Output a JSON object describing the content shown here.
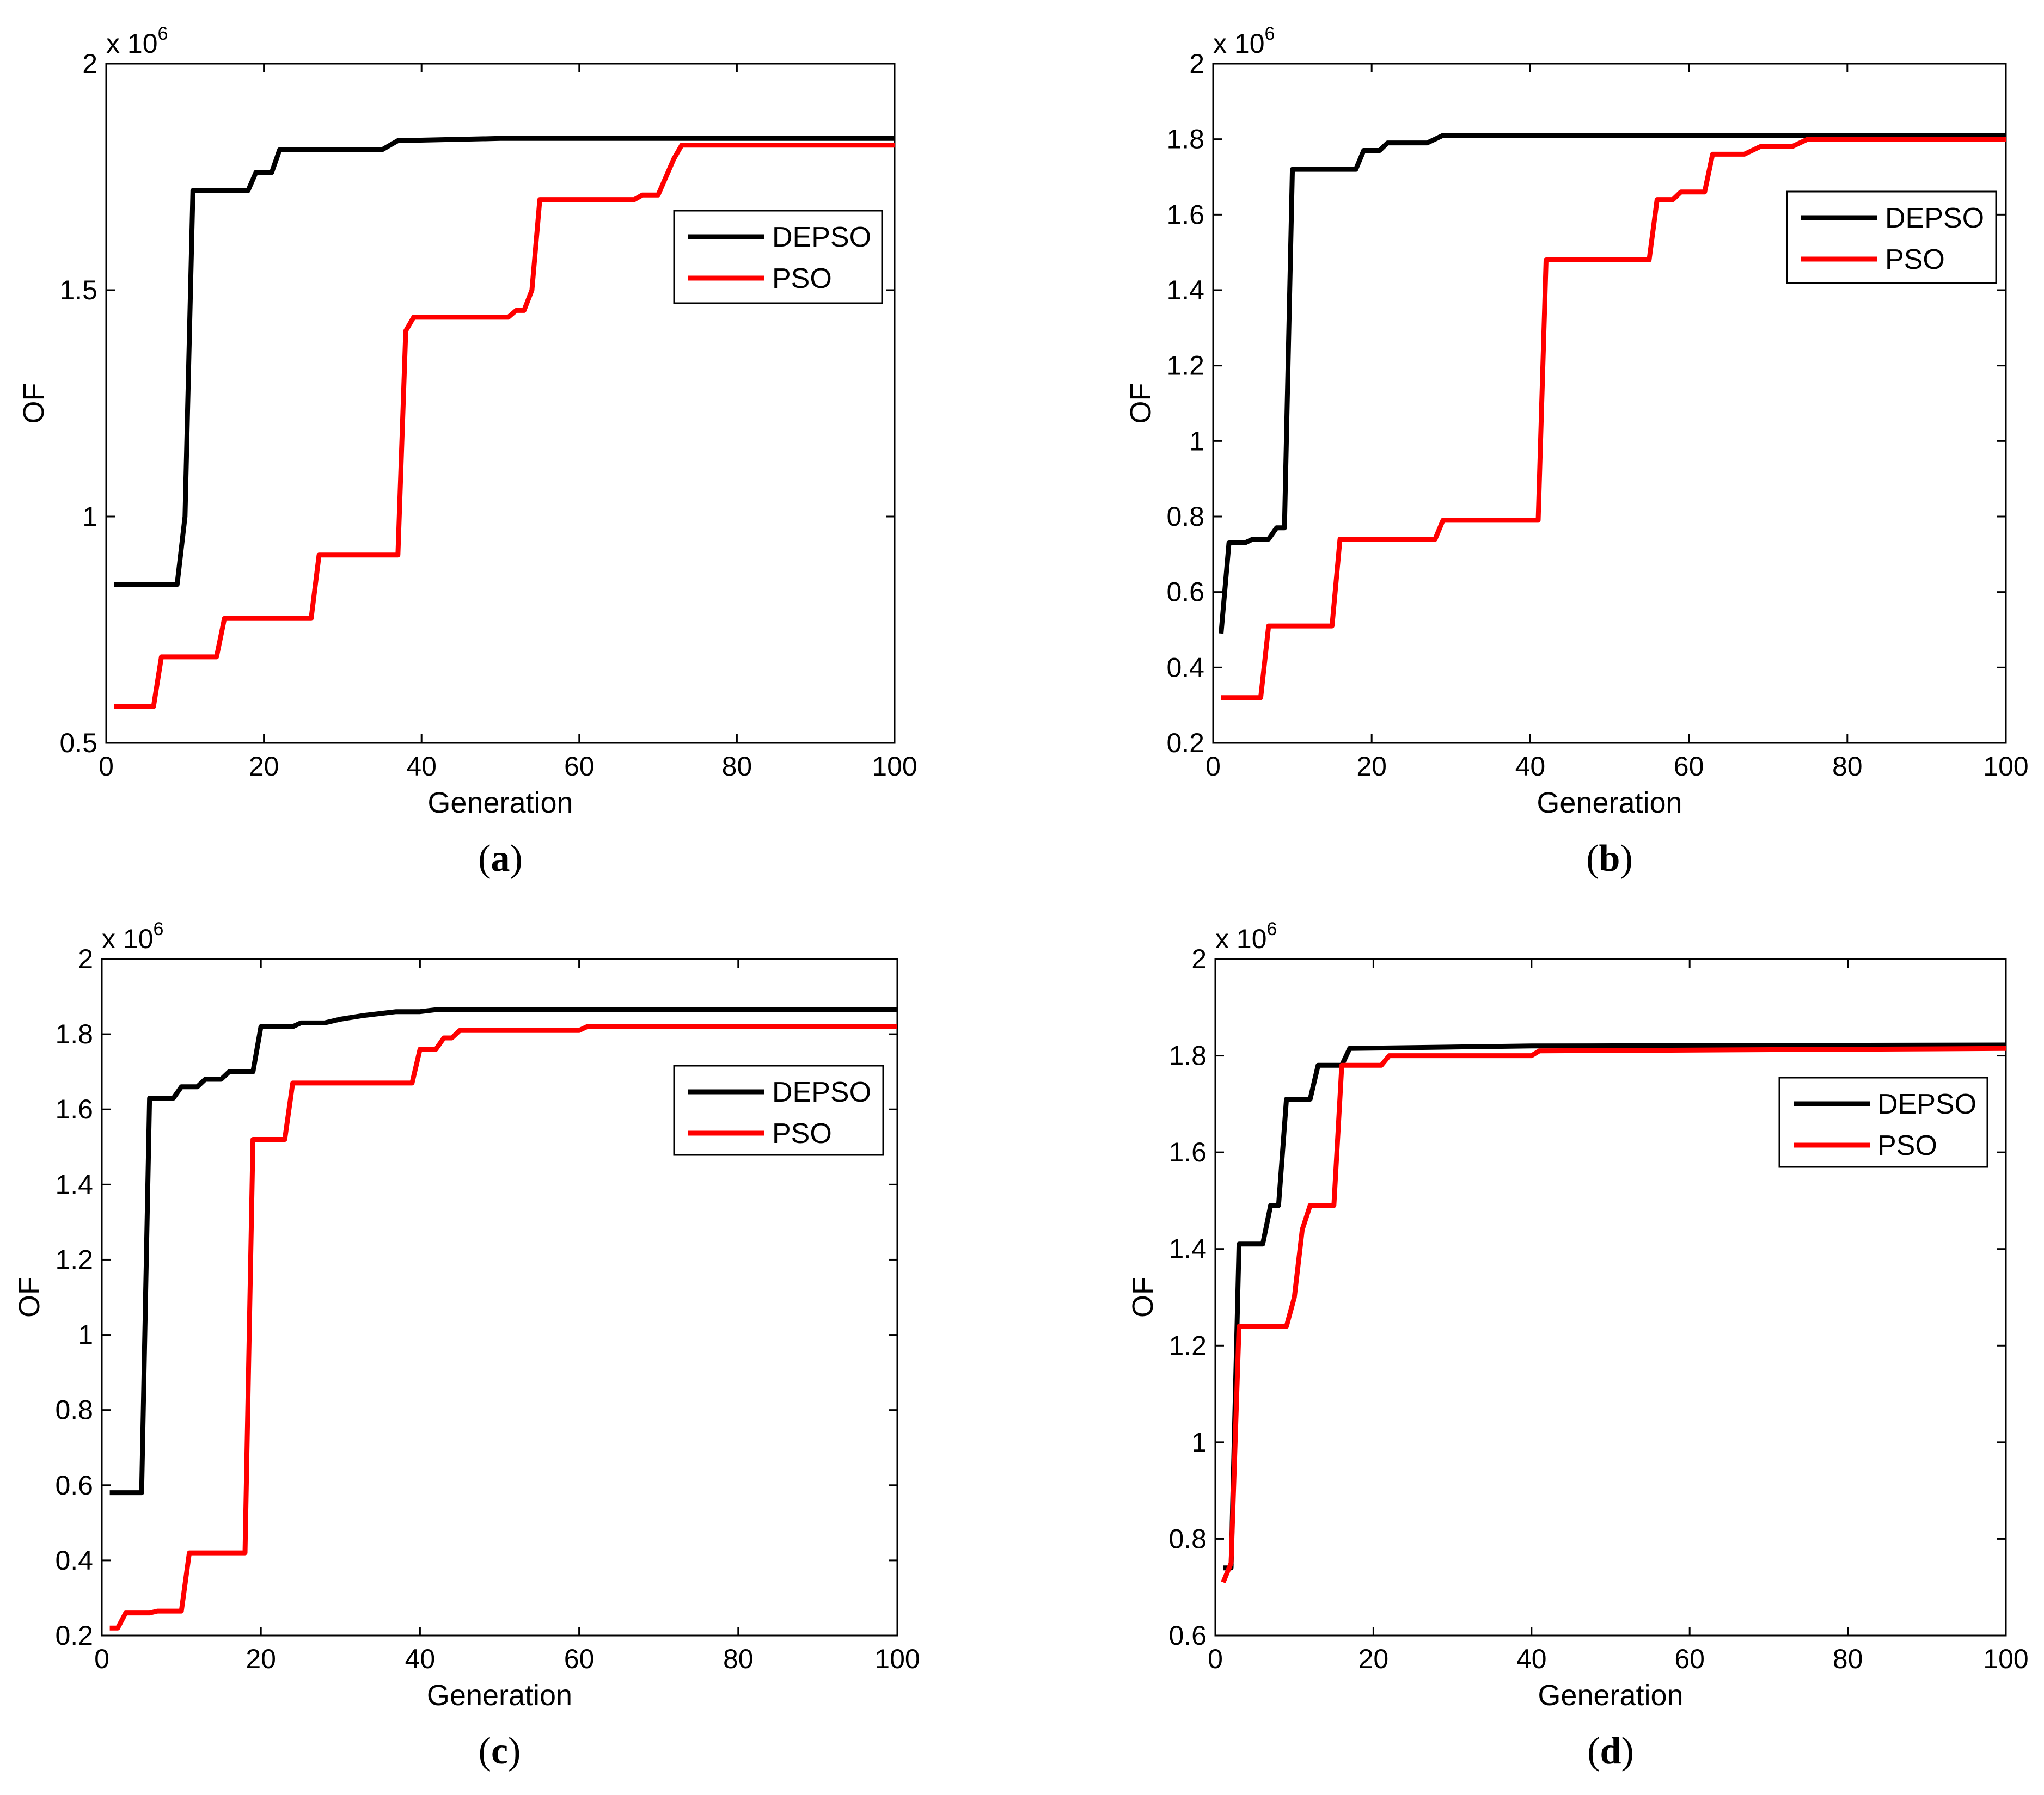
{
  "figure": {
    "panels": [
      {
        "id": "a",
        "caption_open": "(",
        "caption_letter": "a",
        "caption_close": ")"
      },
      {
        "id": "b",
        "caption_open": "(",
        "caption_letter": "b",
        "caption_close": ")"
      },
      {
        "id": "c",
        "caption_open": "(",
        "caption_letter": "c",
        "caption_close": ")"
      },
      {
        "id": "d",
        "caption_open": "(",
        "caption_letter": "d",
        "caption_close": ")"
      }
    ]
  },
  "colors": {
    "DEPSO": "#000000",
    "PSO": "#ff0000"
  },
  "chart_data": [
    {
      "panel": "a",
      "type": "line",
      "title": "",
      "xlabel": "Generation",
      "ylabel": "OF",
      "exponent_prefix": "x 10",
      "exponent_power": "6",
      "xlim": [
        0,
        100
      ],
      "ylim": [
        0.5,
        2
      ],
      "xticks": [
        0,
        20,
        40,
        60,
        80,
        100
      ],
      "xtick_labels": [
        "0",
        "20",
        "40",
        "60",
        "80",
        "100"
      ],
      "yticks": [
        0.5,
        1,
        1.5,
        2
      ],
      "ytick_labels": [
        "0.5",
        "1",
        "1.5",
        "2"
      ],
      "legend_position": "upper-right",
      "series": [
        {
          "name": "DEPSO",
          "color": "#000000",
          "points": [
            [
              1,
              0.85
            ],
            [
              9,
              0.85
            ],
            [
              10,
              1.0
            ],
            [
              11,
              1.72
            ],
            [
              18,
              1.72
            ],
            [
              19,
              1.76
            ],
            [
              21,
              1.76
            ],
            [
              22,
              1.81
            ],
            [
              35,
              1.81
            ],
            [
              37,
              1.83
            ],
            [
              50,
              1.835
            ],
            [
              100,
              1.835
            ]
          ]
        },
        {
          "name": "PSO",
          "color": "#ff0000",
          "points": [
            [
              1,
              0.58
            ],
            [
              6,
              0.58
            ],
            [
              7,
              0.69
            ],
            [
              14,
              0.69
            ],
            [
              15,
              0.775
            ],
            [
              26,
              0.775
            ],
            [
              27,
              0.915
            ],
            [
              37,
              0.915
            ],
            [
              38,
              1.41
            ],
            [
              39,
              1.44
            ],
            [
              51,
              1.44
            ],
            [
              52,
              1.455
            ],
            [
              53,
              1.455
            ],
            [
              54,
              1.5
            ],
            [
              55,
              1.7
            ],
            [
              67,
              1.7
            ],
            [
              68,
              1.71
            ],
            [
              70,
              1.71
            ],
            [
              72,
              1.79
            ],
            [
              73,
              1.82
            ],
            [
              100,
              1.82
            ]
          ]
        }
      ]
    },
    {
      "panel": "b",
      "type": "line",
      "title": "",
      "xlabel": "Generation",
      "ylabel": "OF",
      "exponent_prefix": "x 10",
      "exponent_power": "6",
      "xlim": [
        0,
        100
      ],
      "ylim": [
        0.2,
        2
      ],
      "xticks": [
        0,
        20,
        40,
        60,
        80,
        100
      ],
      "xtick_labels": [
        "0",
        "20",
        "40",
        "60",
        "80",
        "100"
      ],
      "yticks": [
        0.2,
        0.4,
        0.6,
        0.8,
        1,
        1.2,
        1.4,
        1.6,
        1.8,
        2
      ],
      "ytick_labels": [
        "0.2",
        "0.4",
        "0.6",
        "0.8",
        "1",
        "1.2",
        "1.4",
        "1.6",
        "1.8",
        "2"
      ],
      "legend_position": "upper-right",
      "series": [
        {
          "name": "DEPSO",
          "color": "#000000",
          "points": [
            [
              1,
              0.49
            ],
            [
              2,
              0.73
            ],
            [
              4,
              0.73
            ],
            [
              5,
              0.74
            ],
            [
              7,
              0.74
            ],
            [
              8,
              0.77
            ],
            [
              9,
              0.77
            ],
            [
              10,
              1.72
            ],
            [
              18,
              1.72
            ],
            [
              19,
              1.77
            ],
            [
              21,
              1.77
            ],
            [
              22,
              1.79
            ],
            [
              27,
              1.79
            ],
            [
              29,
              1.81
            ],
            [
              100,
              1.81
            ]
          ]
        },
        {
          "name": "PSO",
          "color": "#ff0000",
          "points": [
            [
              1,
              0.32
            ],
            [
              6,
              0.32
            ],
            [
              7,
              0.51
            ],
            [
              15,
              0.51
            ],
            [
              16,
              0.74
            ],
            [
              28,
              0.74
            ],
            [
              29,
              0.79
            ],
            [
              41,
              0.79
            ],
            [
              42,
              1.48
            ],
            [
              55,
              1.48
            ],
            [
              56,
              1.64
            ],
            [
              58,
              1.64
            ],
            [
              59,
              1.66
            ],
            [
              62,
              1.66
            ],
            [
              63,
              1.76
            ],
            [
              67,
              1.76
            ],
            [
              69,
              1.78
            ],
            [
              73,
              1.78
            ],
            [
              75,
              1.8
            ],
            [
              100,
              1.8
            ]
          ]
        }
      ]
    },
    {
      "panel": "c",
      "type": "line",
      "title": "",
      "xlabel": "Generation",
      "ylabel": "OF",
      "exponent_prefix": "x 10",
      "exponent_power": "6",
      "xlim": [
        0,
        100
      ],
      "ylim": [
        0.2,
        2
      ],
      "xticks": [
        0,
        20,
        40,
        60,
        80,
        100
      ],
      "xtick_labels": [
        "0",
        "20",
        "40",
        "60",
        "80",
        "100"
      ],
      "yticks": [
        0.2,
        0.4,
        0.6,
        0.8,
        1,
        1.2,
        1.4,
        1.6,
        1.8,
        2
      ],
      "ytick_labels": [
        "0.2",
        "0.4",
        "0.6",
        "0.8",
        "1",
        "1.2",
        "1.4",
        "1.6",
        "1.8",
        "2"
      ],
      "legend_position": "upper-right",
      "series": [
        {
          "name": "DEPSO",
          "color": "#000000",
          "points": [
            [
              1,
              0.58
            ],
            [
              5,
              0.58
            ],
            [
              6,
              1.63
            ],
            [
              9,
              1.63
            ],
            [
              10,
              1.66
            ],
            [
              12,
              1.66
            ],
            [
              13,
              1.68
            ],
            [
              15,
              1.68
            ],
            [
              16,
              1.7
            ],
            [
              19,
              1.7
            ],
            [
              20,
              1.82
            ],
            [
              24,
              1.82
            ],
            [
              25,
              1.83
            ],
            [
              28,
              1.83
            ],
            [
              30,
              1.84
            ],
            [
              33,
              1.85
            ],
            [
              37,
              1.86
            ],
            [
              40,
              1.86
            ],
            [
              42,
              1.865
            ],
            [
              100,
              1.865
            ]
          ]
        },
        {
          "name": "PSO",
          "color": "#ff0000",
          "points": [
            [
              1,
              0.22
            ],
            [
              2,
              0.22
            ],
            [
              3,
              0.26
            ],
            [
              6,
              0.26
            ],
            [
              7,
              0.265
            ],
            [
              10,
              0.265
            ],
            [
              11,
              0.42
            ],
            [
              18,
              0.42
            ],
            [
              19,
              1.52
            ],
            [
              23,
              1.52
            ],
            [
              24,
              1.67
            ],
            [
              39,
              1.67
            ],
            [
              40,
              1.76
            ],
            [
              42,
              1.76
            ],
            [
              43,
              1.79
            ],
            [
              44,
              1.79
            ],
            [
              45,
              1.81
            ],
            [
              60,
              1.81
            ],
            [
              61,
              1.82
            ],
            [
              100,
              1.82
            ]
          ]
        }
      ]
    },
    {
      "panel": "d",
      "type": "line",
      "title": "",
      "xlabel": "Generation",
      "ylabel": "OF",
      "exponent_prefix": "x 10",
      "exponent_power": "6",
      "xlim": [
        0,
        100
      ],
      "ylim": [
        0.6,
        2
      ],
      "xticks": [
        0,
        20,
        40,
        60,
        80,
        100
      ],
      "xtick_labels": [
        "0",
        "20",
        "40",
        "60",
        "80",
        "100"
      ],
      "yticks": [
        0.6,
        0.8,
        1,
        1.2,
        1.4,
        1.6,
        1.8,
        2
      ],
      "ytick_labels": [
        "0.6",
        "0.8",
        "1",
        "1.2",
        "1.4",
        "1.6",
        "1.8",
        "2"
      ],
      "legend_position": "upper-right",
      "series": [
        {
          "name": "DEPSO",
          "color": "#000000",
          "points": [
            [
              1,
              0.74
            ],
            [
              2,
              0.74
            ],
            [
              3,
              1.41
            ],
            [
              6,
              1.41
            ],
            [
              7,
              1.49
            ],
            [
              8,
              1.49
            ],
            [
              9,
              1.71
            ],
            [
              12,
              1.71
            ],
            [
              13,
              1.78
            ],
            [
              16,
              1.78
            ],
            [
              17,
              1.815
            ],
            [
              40,
              1.82
            ],
            [
              100,
              1.822
            ]
          ]
        },
        {
          "name": "PSO",
          "color": "#ff0000",
          "points": [
            [
              1,
              0.71
            ],
            [
              2,
              0.75
            ],
            [
              3,
              1.24
            ],
            [
              9,
              1.24
            ],
            [
              10,
              1.3
            ],
            [
              11,
              1.44
            ],
            [
              12,
              1.49
            ],
            [
              15,
              1.49
            ],
            [
              16,
              1.78
            ],
            [
              21,
              1.78
            ],
            [
              22,
              1.8
            ],
            [
              40,
              1.8
            ],
            [
              41,
              1.81
            ],
            [
              100,
              1.815
            ]
          ]
        }
      ]
    }
  ]
}
